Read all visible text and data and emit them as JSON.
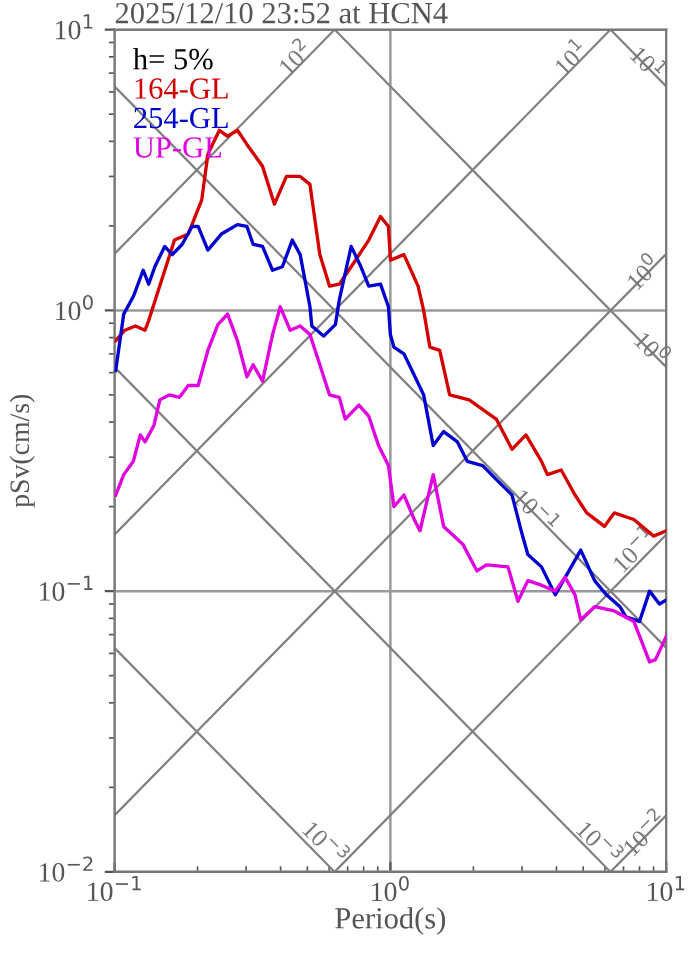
{
  "chart_data": {
    "type": "line",
    "title": "2025/12/10 23:52 at HCN4",
    "xlabel": "Period(s)",
    "ylabel": "pSv(cm/s)",
    "legend_title": "h= 5%",
    "legend": "top left",
    "log": "xy",
    "grid": true,
    "xlim": [
      0.1,
      10
    ],
    "ylim": [
      0.01,
      10
    ],
    "xticks": [
      {
        "value": 0.1,
        "label": "10$^{−1}$"
      },
      {
        "value": 1,
        "label": "10$^{0}$"
      },
      {
        "value": 10,
        "label": "10$^{1}$"
      }
    ],
    "yticks": [
      {
        "value": 0.01,
        "label": "10$^{−2}$"
      },
      {
        "value": 0.1,
        "label": "10$^{−1}$"
      },
      {
        "value": 1,
        "label": "10$^{0}$"
      },
      {
        "value": 10,
        "label": "10$^{1}$"
      }
    ],
    "series": [
      {
        "color": "#808080",
        "x": [
          0.1,
          10
        ],
        "values": [
          0.0159,
          1.59
        ]
      },
      {
        "color": "#808080",
        "x": [
          0.1,
          6.28
        ],
        "values": [
          0.159,
          10
        ]
      },
      {
        "color": "#808080",
        "x": [
          0.1,
          0.628
        ],
        "values": [
          1.59,
          10
        ]
      },
      {
        "color": "#808080",
        "x": [
          0.628,
          10
        ],
        "values": [
          0.01,
          0.159
        ]
      },
      {
        "color": "#808080",
        "x": [
          6.28,
          10
        ],
        "values": [
          0.01,
          0.0159
        ]
      },
      {
        "color": "#808080",
        "x": [
          0.1,
          0.628
        ],
        "values": [
          0.0628,
          0.01
        ]
      },
      {
        "color": "#808080",
        "x": [
          0.1,
          6.28
        ],
        "values": [
          0.628,
          0.01
        ]
      },
      {
        "color": "#808080",
        "x": [
          0.1,
          10
        ],
        "values": [
          6.28,
          0.0628
        ]
      },
      {
        "color": "#808080",
        "x": [
          0.628,
          10
        ],
        "values": [
          10,
          0.628
        ]
      },
      {
        "color": "#808080",
        "x": [
          6.28,
          10
        ],
        "values": [
          10,
          6.28
        ]
      },
      {
        "name": "164-GL",
        "color": "#d40000",
        "x": [
          0.101,
          0.109,
          0.119,
          0.129,
          0.133,
          0.165,
          0.185,
          0.207,
          0.218,
          0.24,
          0.257,
          0.279,
          0.302,
          0.344,
          0.38,
          0.42,
          0.471,
          0.511,
          0.555,
          0.602,
          0.653,
          0.721,
          0.835,
          0.921,
          0.984,
          1.0,
          1.12,
          1.26,
          1.32,
          1.39,
          1.51,
          1.64,
          1.93,
          2.42,
          2.76,
          3.1,
          3.53,
          3.71,
          4.16,
          4.67,
          5.15,
          5.97,
          6.48,
          7.63,
          9.0,
          10
        ],
        "values": [
          0.78,
          0.85,
          0.88,
          0.85,
          0.92,
          1.78,
          1.87,
          2.47,
          3.6,
          4.38,
          4.17,
          4.38,
          3.9,
          3.26,
          2.39,
          3.0,
          3.0,
          2.81,
          1.58,
          1.22,
          1.24,
          1.43,
          1.78,
          2.16,
          1.99,
          1.51,
          1.58,
          1.22,
          1.0,
          0.74,
          0.72,
          0.5,
          0.48,
          0.41,
          0.32,
          0.36,
          0.29,
          0.26,
          0.27,
          0.22,
          0.19,
          0.17,
          0.19,
          0.18,
          0.157,
          0.164
        ]
      },
      {
        "name": "254-GL",
        "color": "#0000d0",
        "x": [
          0.101,
          0.108,
          0.117,
          0.127,
          0.133,
          0.14,
          0.152,
          0.162,
          0.176,
          0.191,
          0.201,
          0.218,
          0.244,
          0.279,
          0.302,
          0.318,
          0.344,
          0.374,
          0.406,
          0.441,
          0.471,
          0.511,
          0.519,
          0.573,
          0.632,
          0.653,
          0.721,
          0.782,
          0.835,
          0.921,
          0.984,
          1.0,
          1.03,
          1.12,
          1.18,
          1.32,
          1.43,
          1.56,
          1.75,
          1.9,
          2.16,
          2.42,
          2.76,
          3.0,
          3.15,
          3.53,
          3.96,
          4.37,
          4.9,
          5.5,
          6.07,
          6.8,
          7.14,
          8.0,
          8.7,
          9.45,
          10
        ],
        "values": [
          0.61,
          0.97,
          1.12,
          1.39,
          1.24,
          1.43,
          1.69,
          1.58,
          1.72,
          1.99,
          1.99,
          1.64,
          1.87,
          2.02,
          1.99,
          1.72,
          1.69,
          1.39,
          1.43,
          1.78,
          1.58,
          1.03,
          0.88,
          0.81,
          0.89,
          1.09,
          1.69,
          1.43,
          1.22,
          1.24,
          1.03,
          0.82,
          0.74,
          0.7,
          0.63,
          0.5,
          0.33,
          0.37,
          0.34,
          0.29,
          0.28,
          0.25,
          0.22,
          0.16,
          0.135,
          0.122,
          0.097,
          0.115,
          0.14,
          0.109,
          0.097,
          0.088,
          0.081,
          0.078,
          0.1,
          0.09,
          0.093
        ]
      },
      {
        "name": "UP-GL",
        "color": "#e000e0",
        "x": [
          0.101,
          0.108,
          0.117,
          0.124,
          0.129,
          0.139,
          0.146,
          0.158,
          0.172,
          0.185,
          0.201,
          0.218,
          0.237,
          0.257,
          0.279,
          0.302,
          0.318,
          0.344,
          0.374,
          0.399,
          0.433,
          0.471,
          0.511,
          0.555,
          0.602,
          0.653,
          0.686,
          0.769,
          0.835,
          0.906,
          0.984,
          1.03,
          1.12,
          1.22,
          1.28,
          1.43,
          1.56,
          1.83,
          2.06,
          2.23,
          2.67,
          2.9,
          3.15,
          3.53,
          3.96,
          4.3,
          4.67,
          4.9,
          5.5,
          6.48,
          7.63,
          8.7,
          9.14,
          10
        ],
        "values": [
          0.22,
          0.26,
          0.29,
          0.36,
          0.34,
          0.39,
          0.48,
          0.5,
          0.49,
          0.54,
          0.54,
          0.72,
          0.89,
          0.97,
          0.78,
          0.58,
          0.64,
          0.56,
          0.82,
          1.03,
          0.85,
          0.88,
          0.82,
          0.64,
          0.5,
          0.49,
          0.41,
          0.46,
          0.42,
          0.33,
          0.28,
          0.2,
          0.22,
          0.18,
          0.164,
          0.26,
          0.17,
          0.147,
          0.118,
          0.124,
          0.122,
          0.092,
          0.109,
          0.105,
          0.1,
          0.112,
          0.097,
          0.079,
          0.088,
          0.085,
          0.078,
          0.056,
          0.057,
          0.069
        ]
      }
    ],
    "annotations": [
      {
        "text": "10$^{2}$",
        "x": 0.46,
        "y": 7.8
      },
      {
        "text": "10$^{1}$",
        "x": 4.6,
        "y": 7.8
      },
      {
        "text": "10$^{1}$",
        "x": 8.4,
        "y": 7.48
      },
      {
        "text": "10$^{0}$",
        "x": 8.4,
        "y": 1.34
      },
      {
        "text": "10$^{0}$",
        "x": 8.7,
        "y": 0.72
      },
      {
        "text": "10$^{−1}$",
        "x": 7.8,
        "y": 0.138
      },
      {
        "text": "10$^{−1}$",
        "x": 3.3,
        "y": 0.19
      },
      {
        "text": "10$^{−3}$",
        "x": 0.57,
        "y": 0.0125
      },
      {
        "text": "10$^{−3}$",
        "x": 5.6,
        "y": 0.0125
      },
      {
        "text": "10$^{−2}$",
        "x": 8.5,
        "y": 0.0135
      }
    ]
  }
}
